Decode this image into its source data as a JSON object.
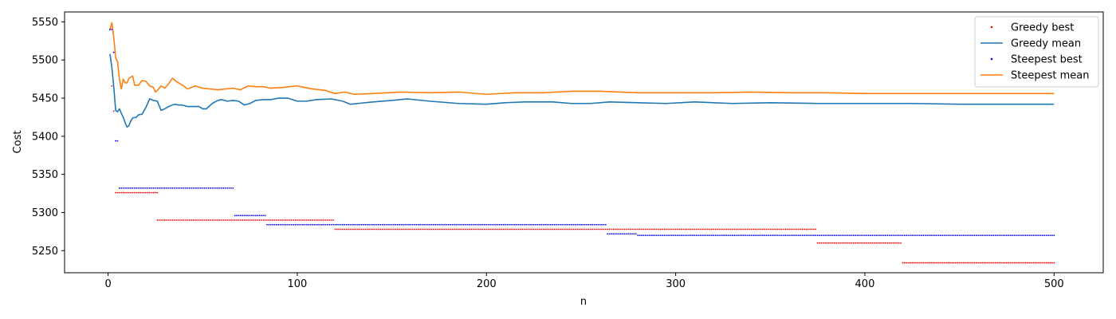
{
  "chart_data": {
    "type": "line",
    "title": "",
    "xlabel": "n",
    "ylabel": "Cost",
    "xlim": [
      -23,
      526
    ],
    "ylim": [
      5221,
      5563
    ],
    "xticks": [
      0,
      100,
      200,
      300,
      400,
      500
    ],
    "yticks": [
      5250,
      5300,
      5350,
      5400,
      5450,
      5500,
      5550
    ],
    "grid": false,
    "legend_position": "top-right",
    "series": [
      {
        "name": "Greedy best",
        "kind": "scatter",
        "color": "#ff0000",
        "points": [
          [
            1,
            5540
          ],
          [
            2,
            5466
          ],
          [
            3,
            5433
          ],
          [
            4,
            5326
          ],
          [
            26,
            5326
          ],
          [
            26,
            5290
          ],
          [
            119,
            5290
          ],
          [
            120,
            5278
          ],
          [
            374,
            5278
          ],
          [
            375,
            5260
          ],
          [
            419,
            5260
          ],
          [
            420,
            5234
          ],
          [
            500,
            5234
          ]
        ]
      },
      {
        "name": "Greedy mean",
        "kind": "line",
        "color": "#1f77b4",
        "points": [
          [
            1,
            5508
          ],
          [
            2,
            5490
          ],
          [
            3,
            5465
          ],
          [
            4,
            5434
          ],
          [
            5,
            5432
          ],
          [
            6,
            5436
          ],
          [
            7,
            5430
          ],
          [
            8,
            5425
          ],
          [
            9,
            5418
          ],
          [
            10,
            5412
          ],
          [
            11,
            5414
          ],
          [
            12,
            5420
          ],
          [
            13,
            5424
          ],
          [
            15,
            5425
          ],
          [
            16,
            5428
          ],
          [
            18,
            5429
          ],
          [
            20,
            5438
          ],
          [
            22,
            5449
          ],
          [
            24,
            5447
          ],
          [
            26,
            5446
          ],
          [
            28,
            5434
          ],
          [
            30,
            5436
          ],
          [
            32,
            5439
          ],
          [
            35,
            5442
          ],
          [
            37,
            5441
          ],
          [
            39,
            5441
          ],
          [
            42,
            5439
          ],
          [
            45,
            5439
          ],
          [
            48,
            5439
          ],
          [
            50,
            5436
          ],
          [
            52,
            5436
          ],
          [
            55,
            5443
          ],
          [
            58,
            5447
          ],
          [
            60,
            5448
          ],
          [
            63,
            5446
          ],
          [
            66,
            5447
          ],
          [
            69,
            5446
          ],
          [
            72,
            5441
          ],
          [
            75,
            5443
          ],
          [
            78,
            5447
          ],
          [
            82,
            5448
          ],
          [
            86,
            5448
          ],
          [
            90,
            5450
          ],
          [
            95,
            5450
          ],
          [
            100,
            5446
          ],
          [
            105,
            5446
          ],
          [
            110,
            5448
          ],
          [
            118,
            5449
          ],
          [
            124,
            5446
          ],
          [
            128,
            5442
          ],
          [
            132,
            5443
          ],
          [
            140,
            5445
          ],
          [
            150,
            5447
          ],
          [
            158,
            5449
          ],
          [
            170,
            5446
          ],
          [
            185,
            5443
          ],
          [
            200,
            5442
          ],
          [
            210,
            5444
          ],
          [
            220,
            5445
          ],
          [
            235,
            5445
          ],
          [
            245,
            5443
          ],
          [
            255,
            5443
          ],
          [
            265,
            5445
          ],
          [
            280,
            5444
          ],
          [
            295,
            5443
          ],
          [
            310,
            5445
          ],
          [
            330,
            5443
          ],
          [
            350,
            5444
          ],
          [
            375,
            5443
          ],
          [
            400,
            5443
          ],
          [
            425,
            5443
          ],
          [
            450,
            5442
          ],
          [
            475,
            5442
          ],
          [
            500,
            5442
          ]
        ]
      },
      {
        "name": "Steepest best",
        "kind": "scatter",
        "color": "#0000ff",
        "points": [
          [
            1,
            5540
          ],
          [
            2,
            5540
          ],
          [
            3,
            5510
          ],
          [
            4,
            5394
          ],
          [
            5,
            5394
          ],
          [
            6,
            5332
          ],
          [
            66,
            5332
          ],
          [
            67,
            5296
          ],
          [
            83,
            5296
          ],
          [
            84,
            5284
          ],
          [
            263,
            5284
          ],
          [
            264,
            5272
          ],
          [
            279,
            5272
          ],
          [
            280,
            5270
          ],
          [
            500,
            5270
          ]
        ]
      },
      {
        "name": "Steepest mean",
        "kind": "line",
        "color": "#ff7f0e",
        "points": [
          [
            1,
            5540
          ],
          [
            2,
            5549
          ],
          [
            3,
            5530
          ],
          [
            4,
            5503
          ],
          [
            5,
            5498
          ],
          [
            6,
            5475
          ],
          [
            7,
            5462
          ],
          [
            8,
            5475
          ],
          [
            9,
            5470
          ],
          [
            10,
            5470
          ],
          [
            11,
            5476
          ],
          [
            13,
            5479
          ],
          [
            14,
            5467
          ],
          [
            16,
            5467
          ],
          [
            18,
            5473
          ],
          [
            20,
            5472
          ],
          [
            22,
            5466
          ],
          [
            24,
            5464
          ],
          [
            25,
            5458
          ],
          [
            26,
            5460
          ],
          [
            28,
            5466
          ],
          [
            30,
            5463
          ],
          [
            32,
            5469
          ],
          [
            34,
            5476
          ],
          [
            36,
            5472
          ],
          [
            38,
            5469
          ],
          [
            40,
            5466
          ],
          [
            42,
            5462
          ],
          [
            46,
            5466
          ],
          [
            50,
            5463
          ],
          [
            54,
            5462
          ],
          [
            58,
            5461
          ],
          [
            62,
            5462
          ],
          [
            66,
            5463
          ],
          [
            70,
            5461
          ],
          [
            74,
            5466
          ],
          [
            78,
            5465
          ],
          [
            82,
            5465
          ],
          [
            86,
            5463
          ],
          [
            92,
            5464
          ],
          [
            100,
            5466
          ],
          [
            108,
            5462
          ],
          [
            115,
            5460
          ],
          [
            120,
            5456
          ],
          [
            125,
            5458
          ],
          [
            130,
            5455
          ],
          [
            140,
            5456
          ],
          [
            155,
            5458
          ],
          [
            170,
            5457
          ],
          [
            185,
            5458
          ],
          [
            200,
            5455
          ],
          [
            215,
            5457
          ],
          [
            230,
            5457
          ],
          [
            245,
            5459
          ],
          [
            260,
            5459
          ],
          [
            280,
            5457
          ],
          [
            300,
            5457
          ],
          [
            320,
            5457
          ],
          [
            340,
            5458
          ],
          [
            360,
            5457
          ],
          [
            380,
            5457
          ],
          [
            400,
            5456
          ],
          [
            420,
            5456
          ],
          [
            440,
            5456
          ],
          [
            460,
            5456
          ],
          [
            480,
            5456
          ],
          [
            500,
            5456
          ]
        ]
      }
    ]
  }
}
